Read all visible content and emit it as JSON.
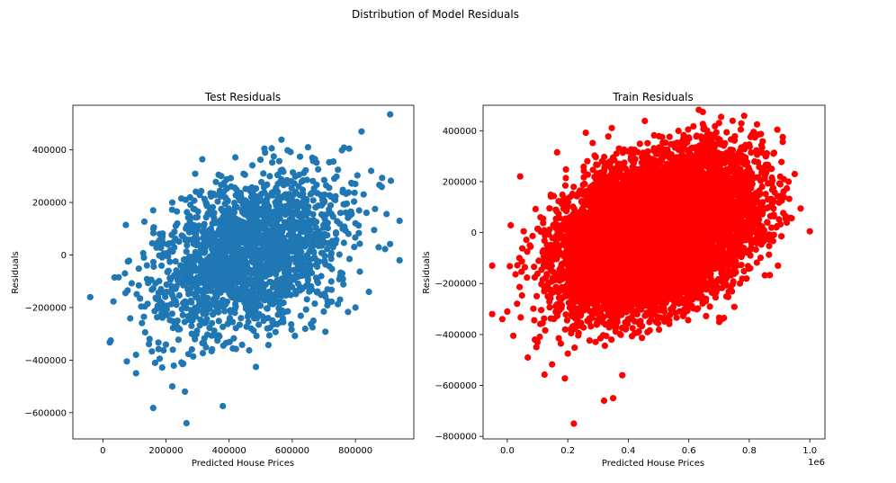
{
  "figure": {
    "title": "Distribution of Model Residuals"
  },
  "chart_data": [
    {
      "type": "scatter",
      "title": "Test Residuals",
      "xlabel": "Predicted House Prices",
      "ylabel": "Residuals",
      "color": "#1f77b4",
      "xlim": [
        -95000,
        985000
      ],
      "ylim": [
        -700000,
        570000
      ],
      "xticks": [
        0,
        200000,
        400000,
        600000,
        800000
      ],
      "yticks": [
        -600000,
        -400000,
        -200000,
        0,
        200000,
        400000
      ],
      "xtick_labels": [
        "0",
        "200000",
        "400000",
        "600000",
        "800000"
      ],
      "ytick_labels": [
        "−600000",
        "−400000",
        "−200000",
        "0",
        "200000",
        "400000"
      ],
      "x_offset_label": "",
      "cloud": {
        "x_center": 470000,
        "x_spread": 150000,
        "y_spread": 150000,
        "corr": 0.35,
        "n": 2000
      },
      "points": [
        [
          -40000,
          -160000
        ],
        [
          25000,
          -325000
        ],
        [
          70000,
          -70000
        ],
        [
          105000,
          -450000
        ],
        [
          105000,
          -380000
        ],
        [
          220000,
          -500000
        ],
        [
          265000,
          -640000
        ],
        [
          260000,
          -520000
        ],
        [
          380000,
          -575000
        ],
        [
          910000,
          535000
        ],
        [
          940000,
          -20000
        ],
        [
          940000,
          130000
        ],
        [
          780000,
          405000
        ],
        [
          650000,
          410000
        ],
        [
          850000,
          320000
        ],
        [
          800000,
          -200000
        ],
        [
          130000,
          -10000
        ],
        [
          160000,
          100000
        ],
        [
          130000,
          -235000
        ],
        [
          180000,
          80000
        ]
      ]
    },
    {
      "type": "scatter",
      "title": "Train Residuals",
      "xlabel": "Predicted House Prices",
      "ylabel": "Residuals",
      "color": "#ff0000",
      "xlim": [
        -0.08,
        1.05
      ],
      "ylim": [
        -810000,
        500000
      ],
      "xticks": [
        0.0,
        0.2,
        0.4,
        0.6,
        0.8,
        1.0
      ],
      "yticks": [
        -800000,
        -600000,
        -400000,
        -200000,
        0,
        200000,
        400000
      ],
      "xtick_labels": [
        "0.0",
        "0.2",
        "0.4",
        "0.6",
        "0.8",
        "1.0"
      ],
      "ytick_labels": [
        "−800000",
        "−600000",
        "−400000",
        "−200000",
        "0",
        "200000",
        "400000"
      ],
      "x_offset_label": "1e6",
      "cloud": {
        "x_center": 0.49,
        "x_spread": 0.15,
        "y_spread": 150000,
        "corr": 0.35,
        "n": 9000
      },
      "points": [
        [
          -0.05,
          -320000
        ],
        [
          -0.05,
          -130000
        ],
        [
          0.02,
          -405000
        ],
        [
          0.0,
          -310000
        ],
        [
          0.22,
          -750000
        ],
        [
          0.32,
          -660000
        ],
        [
          0.35,
          -650000
        ],
        [
          0.38,
          -560000
        ],
        [
          0.7,
          430000
        ],
        [
          0.65,
          415000
        ],
        [
          0.83,
          385000
        ],
        [
          1.0,
          5000
        ],
        [
          0.95,
          230000
        ],
        [
          0.93,
          200000
        ],
        [
          0.9,
          140000
        ],
        [
          0.88,
          310000
        ],
        [
          0.2,
          -475000
        ],
        [
          0.1,
          -430000
        ],
        [
          0.17,
          -415000
        ],
        [
          0.04,
          -100000
        ]
      ]
    }
  ]
}
